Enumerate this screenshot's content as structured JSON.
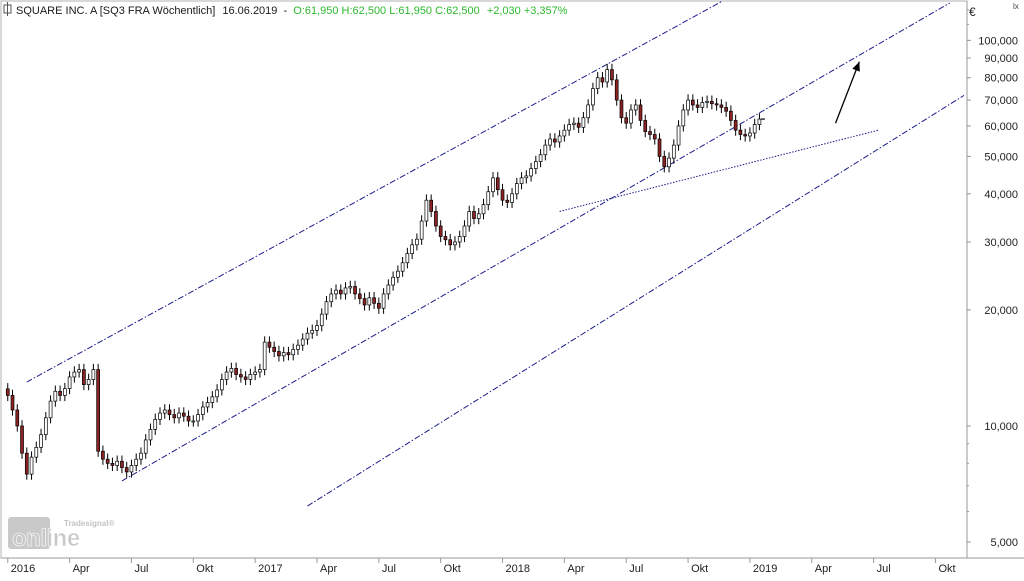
{
  "header": {
    "title": "SQUARE INC. A [SQ3 FRA  Wöchentlich]",
    "date": "16.06.2019",
    "ohlc": "O:61,950 H:62,500 L:61,950 C:62,500",
    "change": "+2,030 +3,357%",
    "change_color": "#2db82d",
    "neutral_color": "#1a1a1a"
  },
  "axis": {
    "currency": "€",
    "scale_toggle": "lx"
  },
  "watermark": {
    "brand_small": "Tradesignal®",
    "brand_big": "online"
  },
  "colors": {
    "bull_fill": "#ffffff",
    "bear_fill": "#8b2323",
    "wick": "#000000",
    "channel": "#1c1c8c",
    "arrow": "#000000",
    "axis_text": "#222222",
    "frame": "#9a9a9a"
  },
  "chart_data": {
    "type": "candlestick",
    "scale": "log",
    "ylim": [
      4.6,
      125
    ],
    "y_ticks": [
      5,
      10,
      20,
      30,
      40,
      50,
      60,
      70,
      80,
      90,
      100
    ],
    "y_tick_labels": [
      "5,000",
      "10,000",
      "20,000",
      "30,000",
      "40,000",
      "50,000",
      "60,000",
      "70,000",
      "80,000",
      "90,000",
      "100,000"
    ],
    "x_labels": [
      {
        "label": "2016",
        "week": 0
      },
      {
        "label": "Apr",
        "week": 13
      },
      {
        "label": "Jul",
        "week": 26
      },
      {
        "label": "Okt",
        "week": 39
      },
      {
        "label": "2017",
        "week": 52
      },
      {
        "label": "Apr",
        "week": 65
      },
      {
        "label": "Jul",
        "week": 78
      },
      {
        "label": "Okt",
        "week": 91
      },
      {
        "label": "2018",
        "week": 104
      },
      {
        "label": "Apr",
        "week": 117
      },
      {
        "label": "Jul",
        "week": 130
      },
      {
        "label": "Okt",
        "week": 143
      },
      {
        "label": "2019",
        "week": 156
      },
      {
        "label": "Apr",
        "week": 169
      },
      {
        "label": "Jul",
        "week": 182
      },
      {
        "label": "Okt",
        "week": 195
      }
    ],
    "x_range_weeks": [
      -1,
      201
    ],
    "closes": [
      12.0,
      11.0,
      10.0,
      8.5,
      7.5,
      8.3,
      8.8,
      9.5,
      10.5,
      11.6,
      12.3,
      12.0,
      12.5,
      13.4,
      13.8,
      14.0,
      12.8,
      13.2,
      14.0,
      8.6,
      8.2,
      8.0,
      7.9,
      8.1,
      7.8,
      7.6,
      7.9,
      8.2,
      8.5,
      9.2,
      9.8,
      10.4,
      10.8,
      11.0,
      10.7,
      10.5,
      10.8,
      10.6,
      10.3,
      10.3,
      10.7,
      11.2,
      11.5,
      11.9,
      12.4,
      13.2,
      13.8,
      14.1,
      13.6,
      13.4,
      13.2,
      13.6,
      13.8,
      14.0,
      16.5,
      16.0,
      15.6,
      15.2,
      15.5,
      15.3,
      15.8,
      16.2,
      16.8,
      17.4,
      17.7,
      18.2,
      19.5,
      21.0,
      22.0,
      22.5,
      22.0,
      22.8,
      23.0,
      22.0,
      21.4,
      20.6,
      21.5,
      20.8,
      20.2,
      22.0,
      23.2,
      24.3,
      25.2,
      26.5,
      28.0,
      29.5,
      30.5,
      34.0,
      38.5,
      36.0,
      33.0,
      31.0,
      30.4,
      29.5,
      30.0,
      31.0,
      33.0,
      36.0,
      34.5,
      35.5,
      37.5,
      40.5,
      44.0,
      41.0,
      38.5,
      38.0,
      40.0,
      42.5,
      44.0,
      44.5,
      46.5,
      48.5,
      50.5,
      53.5,
      55.5,
      54.5,
      56.5,
      58.5,
      60.5,
      61.0,
      59.5,
      63.0,
      68.0,
      75.0,
      80.0,
      78.0,
      84.0,
      79.0,
      70.0,
      63.0,
      61.0,
      66.0,
      68.0,
      62.0,
      58.0,
      57.0,
      55.5,
      50.0,
      47.0,
      49.5,
      53.5,
      60.0,
      66.0,
      70.0,
      68.0,
      67.0,
      69.0,
      69.5,
      68.5,
      68.0,
      67.0,
      65.5,
      62.0,
      58.5,
      57.0,
      56.5,
      57.5,
      60.5,
      62.5
    ],
    "last_close": 62.5,
    "trendlines": [
      {
        "name": "upper-channel",
        "from": [
          4,
          13.0
        ],
        "to": [
          150,
          126
        ]
      },
      {
        "name": "middle-channel",
        "from": [
          24,
          7.2
        ],
        "to": [
          198,
          125
        ]
      },
      {
        "name": "lower-channel",
        "from": [
          63,
          6.2
        ],
        "to": [
          201,
          72
        ]
      },
      {
        "name": "support-line",
        "from": [
          116,
          36.0
        ],
        "to": [
          183,
          58.5
        ]
      }
    ],
    "arrow": {
      "from": [
        174,
        61
      ],
      "to": [
        179,
        88
      ]
    }
  }
}
